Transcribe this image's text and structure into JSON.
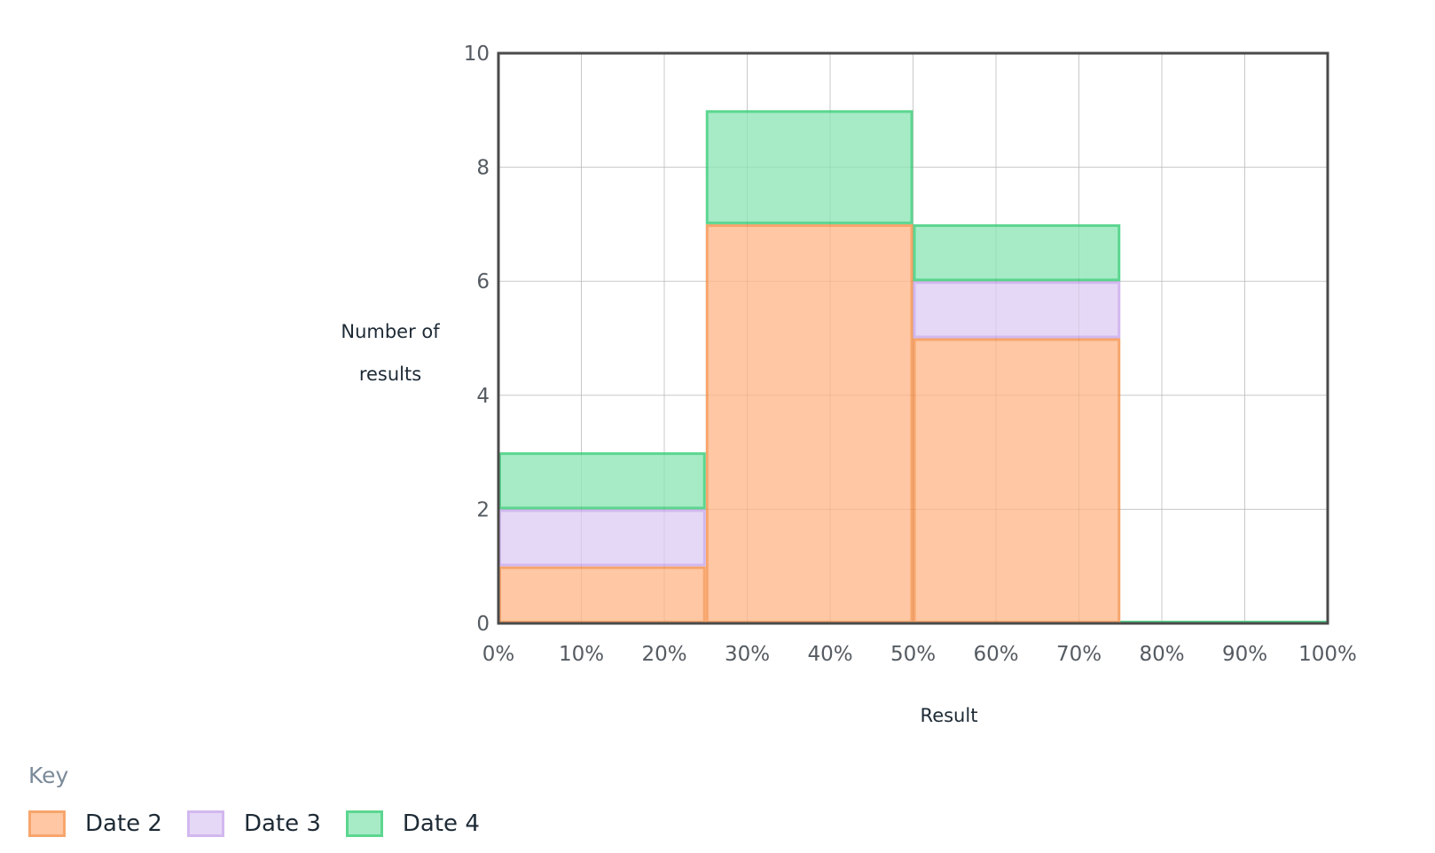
{
  "chart_data": {
    "type": "bar",
    "stacked": true,
    "bins": [
      [
        0,
        25
      ],
      [
        25,
        50
      ],
      [
        50,
        75
      ],
      [
        75,
        100
      ]
    ],
    "series": [
      {
        "name": "Date 2",
        "values": [
          1,
          7,
          5,
          0
        ],
        "fill": "#ffc7a3",
        "stroke": "#f7a56c"
      },
      {
        "name": "Date 3",
        "values": [
          1,
          0,
          1,
          0
        ],
        "fill": "#e5d8f6",
        "stroke": "#d2b8ef"
      },
      {
        "name": "Date 4",
        "values": [
          1,
          2,
          1,
          0
        ],
        "fill": "#a6ebc6",
        "stroke": "#5cd690"
      }
    ],
    "xlabel": "Result",
    "ylabel": "Number of results",
    "xlim": [
      0,
      100
    ],
    "ylim": [
      0,
      10
    ],
    "xticks": [
      "0%",
      "10%",
      "20%",
      "30%",
      "40%",
      "50%",
      "60%",
      "70%",
      "80%",
      "90%",
      "100%"
    ],
    "yticks": [
      "0",
      "2",
      "4",
      "6",
      "8",
      "10"
    ],
    "grid": true,
    "legend_title": "Key",
    "legend_position": "bottom-left"
  },
  "colors": {
    "axis": "#4a4a4a",
    "grid": "#d5d5d5",
    "text": "#1d2a35",
    "key_title": "#7b8a99"
  }
}
